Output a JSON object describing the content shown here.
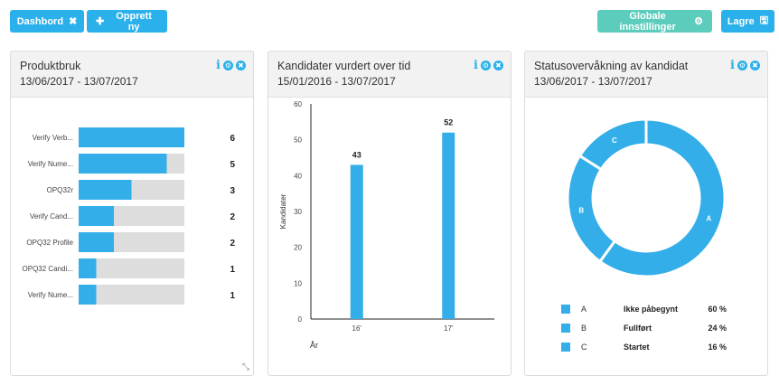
{
  "toolbar": {
    "dashboard_label": "Dashbord",
    "dashboard_close_glyph": "✖",
    "new_label": "Opprett ny",
    "new_glyph": "✚",
    "global_settings_label": "Globale innstillinger",
    "global_settings_glyph": "⚙",
    "save_label": "Lagre",
    "save_glyph": "🖫"
  },
  "panels": [
    {
      "title": "Produktbruk",
      "date": "13/06/2017 - 13/07/2017",
      "icon_info": "i",
      "icon_settings": "⚙",
      "icon_close": "✖"
    },
    {
      "title": "Kandidater vurdert over tid",
      "date": "15/01/2016 - 13/07/2017",
      "icon_info": "i",
      "icon_settings": "⚙",
      "icon_close": "✖"
    },
    {
      "title": "Statusovervåkning av kandidat",
      "date": "13/06/2017 - 13/07/2017",
      "icon_info": "i",
      "icon_settings": "⚙",
      "icon_close": "✖"
    }
  ],
  "resize_glyph": "⤡",
  "chart_data": [
    {
      "type": "bar",
      "orientation": "horizontal",
      "categories": [
        "Verify Verb...",
        "Verify Nume...",
        "OPQ32r",
        "Verify Cand...",
        "OPQ32 Profile",
        "OPQ32 Candi...",
        "Verify Nume..."
      ],
      "values": [
        6,
        5,
        3,
        2,
        2,
        1,
        1
      ],
      "xlim": [
        0,
        6
      ],
      "bar_color": "#33aee8",
      "track_color": "#dddddd"
    },
    {
      "type": "bar",
      "categories": [
        "16'",
        "17'"
      ],
      "values": [
        43,
        52
      ],
      "ylim": [
        0,
        60
      ],
      "yticks": [
        0,
        10,
        20,
        30,
        40,
        50,
        60
      ],
      "xlabel": "År",
      "ylabel": "Kandidater",
      "bar_color": "#33aee8"
    },
    {
      "type": "pie",
      "donut": true,
      "slices": [
        {
          "key": "A",
          "label": "Ikke påbegynt",
          "value": 60,
          "value_label": "60 %"
        },
        {
          "key": "B",
          "label": "Fullført",
          "value": 24,
          "value_label": "24 %"
        },
        {
          "key": "C",
          "label": "Startet",
          "value": 16,
          "value_label": "16 %"
        }
      ],
      "color": "#33aee8"
    }
  ]
}
